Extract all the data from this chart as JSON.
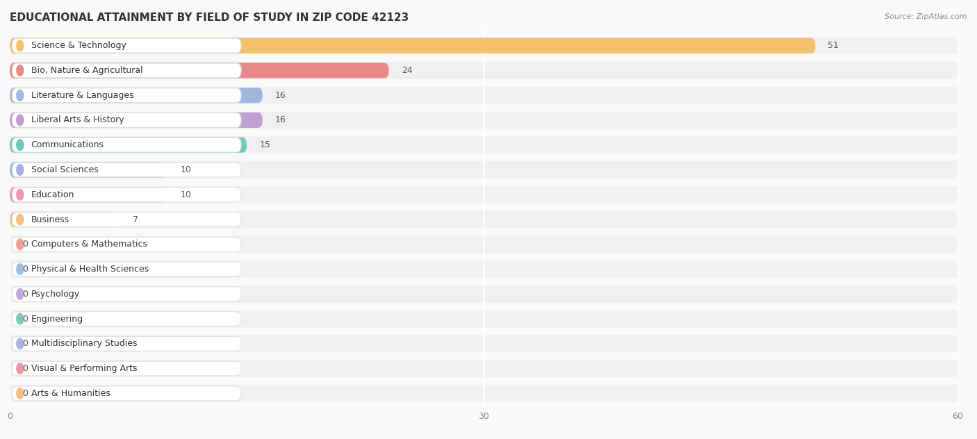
{
  "title": "EDUCATIONAL ATTAINMENT BY FIELD OF STUDY IN ZIP CODE 42123",
  "source": "Source: ZipAtlas.com",
  "categories": [
    "Science & Technology",
    "Bio, Nature & Agricultural",
    "Literature & Languages",
    "Liberal Arts & History",
    "Communications",
    "Social Sciences",
    "Education",
    "Business",
    "Computers & Mathematics",
    "Physical & Health Sciences",
    "Psychology",
    "Engineering",
    "Multidisciplinary Studies",
    "Visual & Performing Arts",
    "Arts & Humanities"
  ],
  "values": [
    51,
    24,
    16,
    16,
    15,
    10,
    10,
    7,
    0,
    0,
    0,
    0,
    0,
    0,
    0
  ],
  "bar_colors": [
    "#F5C06A",
    "#E88A8A",
    "#A0B8DE",
    "#C0A0D0",
    "#6DCABC",
    "#A8B0E0",
    "#F098B0",
    "#F5C080",
    "#F0A090",
    "#A0C0E0",
    "#C0A8D8",
    "#80C8C0",
    "#B0B0E0",
    "#F098A8",
    "#F5C080"
  ],
  "xlim": [
    0,
    60
  ],
  "xticks": [
    0,
    30,
    60
  ],
  "background_color": "#f9f9f9",
  "row_bg_color": "#f0f0f0",
  "label_bg_color": "#ffffff",
  "title_fontsize": 11,
  "label_fontsize": 9,
  "value_fontsize": 9
}
